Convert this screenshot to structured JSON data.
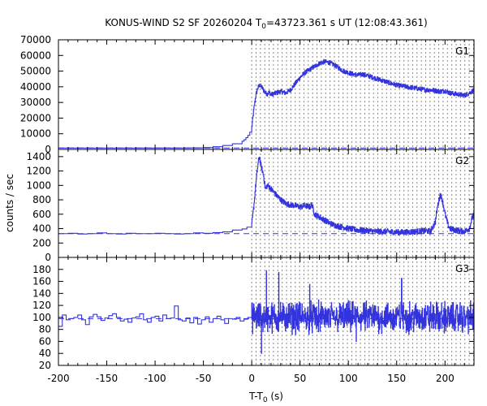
{
  "chart_data": {
    "type": "line",
    "title": "KONUS-WIND S2 SF 20260204 T0=43723.361 s UT (12:08:43.361)",
    "title_parts": {
      "prefix": "KONUS-WIND S2 SF 20260204 T",
      "subscript": "0",
      "suffix": "=43723.361 s UT (12:08:43.361)"
    },
    "xlabel": "T-T0 (s)",
    "xlabel_parts": {
      "prefix": "T-T",
      "subscript": "0",
      "suffix": " (s)"
    },
    "ylabel": "counts / sec",
    "xlim": [
      -200,
      230
    ],
    "x_ticks": [
      -200,
      -150,
      -100,
      -50,
      0,
      50,
      100,
      150,
      200
    ],
    "x_minor_step": 10,
    "series_color": "#3333dd",
    "background_color": "#3333dd",
    "grid_color": "#888888",
    "vertical_dotted_lines_start": 0,
    "vertical_dotted_lines_step": 4.5,
    "vertical_dotted_lines_end": 230,
    "panels": [
      {
        "name": "G1",
        "label": "G1",
        "ylim": [
          0,
          70000
        ],
        "y_ticks": [
          0,
          10000,
          20000,
          30000,
          40000,
          50000,
          60000,
          70000
        ],
        "background_level": 900,
        "pre_trigger": {
          "x": [
            -200,
            -190,
            -180,
            -170,
            -160,
            -150,
            -140,
            -130,
            -120,
            -110,
            -100,
            -90,
            -80,
            -70,
            -60,
            -50,
            -40,
            -30,
            -20,
            -10,
            -8,
            -6,
            -4,
            -2,
            0
          ],
          "y": [
            900,
            900,
            900,
            900,
            900,
            900,
            900,
            900,
            900,
            900,
            900,
            900,
            900,
            950,
            1000,
            1200,
            1700,
            2500,
            3600,
            5200,
            6200,
            7500,
            9000,
            11000,
            14000
          ]
        },
        "x": [
          0,
          2,
          4,
          6,
          8,
          10,
          12,
          14,
          16,
          18,
          20,
          25,
          30,
          35,
          40,
          45,
          50,
          55,
          60,
          65,
          70,
          75,
          80,
          85,
          90,
          95,
          100,
          105,
          110,
          115,
          120,
          125,
          130,
          135,
          140,
          145,
          150,
          155,
          160,
          165,
          170,
          175,
          180,
          185,
          190,
          195,
          200,
          205,
          210,
          215,
          220,
          225,
          230
        ],
        "y": [
          14000,
          25000,
          34000,
          39000,
          41000,
          40000,
          38000,
          36000,
          35500,
          36500,
          35000,
          36000,
          37000,
          36000,
          38000,
          42000,
          46000,
          49000,
          51000,
          53000,
          55000,
          56000,
          55500,
          54000,
          52000,
          50000,
          49000,
          48000,
          47500,
          48000,
          47000,
          46000,
          45000,
          44000,
          43000,
          42000,
          41000,
          40500,
          40000,
          39500,
          39000,
          38500,
          38000,
          38000,
          37500,
          37000,
          37500,
          36000,
          35500,
          35000,
          34500,
          36000,
          38000
        ],
        "noise": 1500
      },
      {
        "name": "G2",
        "label": "G2",
        "ylim": [
          0,
          1500
        ],
        "y_ticks": [
          0,
          200,
          400,
          600,
          800,
          1000,
          1200,
          1400
        ],
        "background_level": 330,
        "pre_trigger": {
          "x": [
            -200,
            -190,
            -180,
            -170,
            -160,
            -150,
            -140,
            -130,
            -120,
            -110,
            -100,
            -90,
            -80,
            -70,
            -60,
            -50,
            -40,
            -30,
            -20,
            -10,
            -5,
            0
          ],
          "y": [
            330,
            335,
            325,
            330,
            340,
            330,
            325,
            335,
            330,
            330,
            335,
            330,
            325,
            330,
            340,
            335,
            345,
            355,
            380,
            395,
            420,
            460
          ]
        },
        "x": [
          0,
          2,
          4,
          6,
          7,
          8,
          9,
          10,
          12,
          14,
          16,
          18,
          20,
          25,
          30,
          35,
          40,
          45,
          50,
          55,
          60,
          62,
          65,
          70,
          75,
          80,
          85,
          90,
          95,
          100,
          110,
          120,
          130,
          140,
          150,
          160,
          170,
          180,
          185,
          190,
          192,
          195,
          197,
          200,
          203,
          205,
          210,
          215,
          220,
          225,
          228,
          230
        ],
        "y": [
          460,
          700,
          1000,
          1250,
          1350,
          1400,
          1300,
          1250,
          1150,
          950,
          1000,
          980,
          950,
          870,
          800,
          750,
          730,
          720,
          700,
          720,
          700,
          740,
          600,
          560,
          520,
          480,
          450,
          430,
          420,
          400,
          380,
          370,
          360,
          360,
          350,
          350,
          360,
          370,
          360,
          500,
          700,
          880,
          800,
          600,
          450,
          400,
          380,
          370,
          360,
          400,
          550,
          600
        ],
        "noise": 40
      },
      {
        "name": "G3",
        "label": "G3",
        "ylim": [
          20,
          200
        ],
        "y_ticks": [
          20,
          40,
          60,
          80,
          100,
          120,
          140,
          160,
          180
        ],
        "background_level": 98,
        "pre_trigger": {
          "x": [
            -200,
            -196,
            -192,
            -188,
            -184,
            -180,
            -176,
            -172,
            -168,
            -164,
            -160,
            -156,
            -152,
            -148,
            -144,
            -140,
            -136,
            -132,
            -128,
            -124,
            -120,
            -116,
            -112,
            -108,
            -104,
            -100,
            -96,
            -92,
            -88,
            -84,
            -80,
            -76,
            -72,
            -68,
            -64,
            -60,
            -56,
            -52,
            -48,
            -44,
            -40,
            -36,
            -32,
            -28,
            -24,
            -20,
            -16,
            -12,
            -8,
            -4,
            0
          ],
          "y": [
            85,
            104,
            96,
            98,
            100,
            104,
            96,
            88,
            101,
            105,
            101,
            95,
            99,
            103,
            106,
            100,
            94,
            97,
            92,
            99,
            101,
            106,
            96,
            92,
            100,
            102,
            94,
            104,
            98,
            99,
            119,
            96,
            94,
            99,
            91,
            100,
            89,
            96,
            101,
            92,
            98,
            102,
            96,
            90,
            98,
            97,
            100,
            94,
            97,
            100,
            98
          ]
        },
        "x_start": 0,
        "x_end": 230,
        "mean": 100,
        "noise": 18,
        "spikes": [
          {
            "x": 10,
            "y": 40
          },
          {
            "x": 15,
            "y": 178
          },
          {
            "x": 28,
            "y": 175
          },
          {
            "x": 60,
            "y": 155
          },
          {
            "x": 155,
            "y": 165
          },
          {
            "x": 108,
            "y": 60
          }
        ]
      }
    ]
  }
}
